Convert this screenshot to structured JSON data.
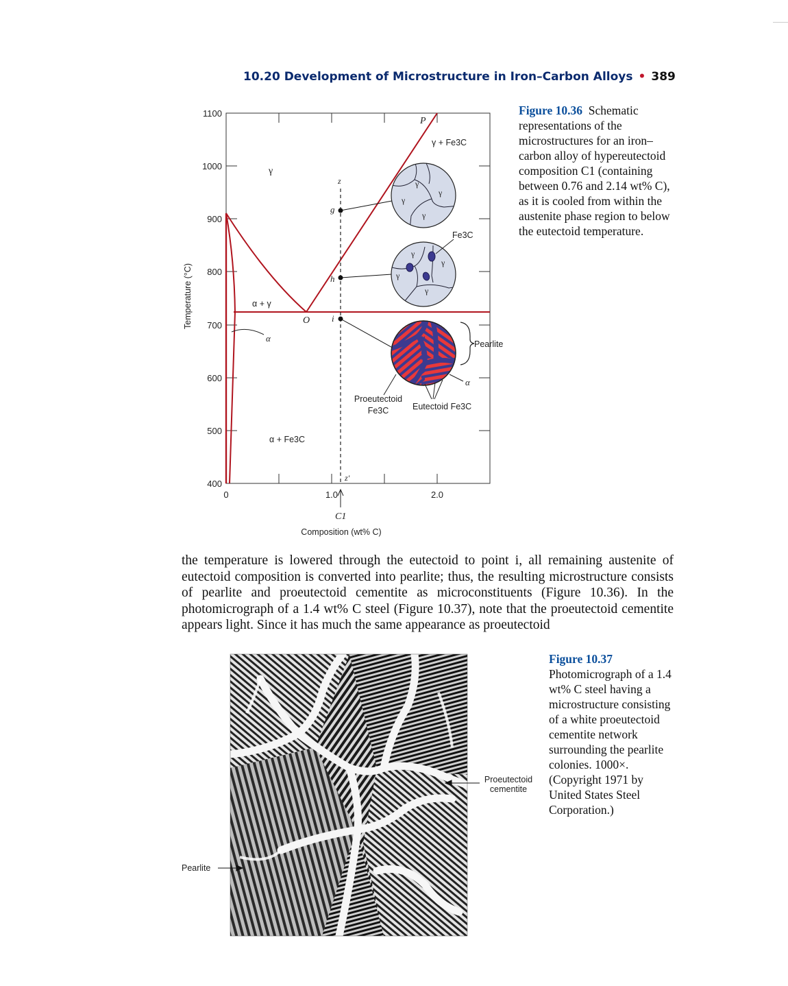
{
  "header": {
    "section": "10.20 Development of Microstructure in Iron–Carbon Alloys",
    "bullet": "•",
    "page_number": "389"
  },
  "figure36": {
    "label": "Figure 10.36",
    "caption": "Schematic representations of the microstructures for an iron–carbon alloy of hypereutectoid composition C1 (containing between 0.76 and 2.14 wt% C), as it is cooled from within the austenite phase region to below the eutectoid temperature.",
    "ylabel": "Temperature (°C)",
    "xlabel": "Composition (wt% C)",
    "yticks": [
      "1100",
      "1000",
      "900",
      "800",
      "700",
      "600",
      "500",
      "400"
    ],
    "xticks": [
      "0",
      "1.0",
      "2.0"
    ],
    "regions": {
      "gamma": "γ",
      "gamma_fe3c": "γ + Fe3C",
      "alpha_gamma": "α + γ",
      "alpha": "α",
      "alpha_fe3c": "α + Fe3C"
    },
    "points": {
      "P": "P",
      "O": "O",
      "z": "z",
      "zp": "z′",
      "g": "g",
      "h": "h",
      "i": "i",
      "C1": "C1"
    },
    "labels": {
      "fe3c": "Fe3C",
      "pearlite": "Pearlite",
      "alpha": "α",
      "proeutectoid1": "Proeutectoid",
      "proeutectoid2": "Fe3C",
      "eutectoid": "Eutectoid Fe3C",
      "gamma": "γ"
    }
  },
  "figure37": {
    "label": "Figure 10.37",
    "caption": "Photomicrograph of a 1.4 wt% C steel having a microstructure consisting of a white proeutectoid cementite network surrounding the pearlite colonies. 1000×. (Copyright 1971 by United States Steel Corporation.)",
    "label_cementite_1": "Proeutectoid",
    "label_cementite_2": "cementite",
    "label_pearlite": "Pearlite"
  },
  "body": "the temperature is lowered through the eutectoid to point i, all remaining austenite of eutectoid composition is converted into pearlite; thus, the resulting microstructure consists of pearlite and proeutectoid cementite as microconstituents (Figure 10.36). In the photomicrograph of a 1.4 wt% C steel (Figure 10.37), note that the proeutectoid cementite appears light. Since it has much the same appearance as proeutectoid",
  "colors": {
    "accent": "#0a2a6e",
    "caption_label": "#0b4f9c",
    "bullet": "#c0162c",
    "phase_line": "#b0141e",
    "gamma_grain": "#d5dbe9",
    "fe3c": "#3c3a90",
    "pearlite_red": "#e8383a"
  }
}
